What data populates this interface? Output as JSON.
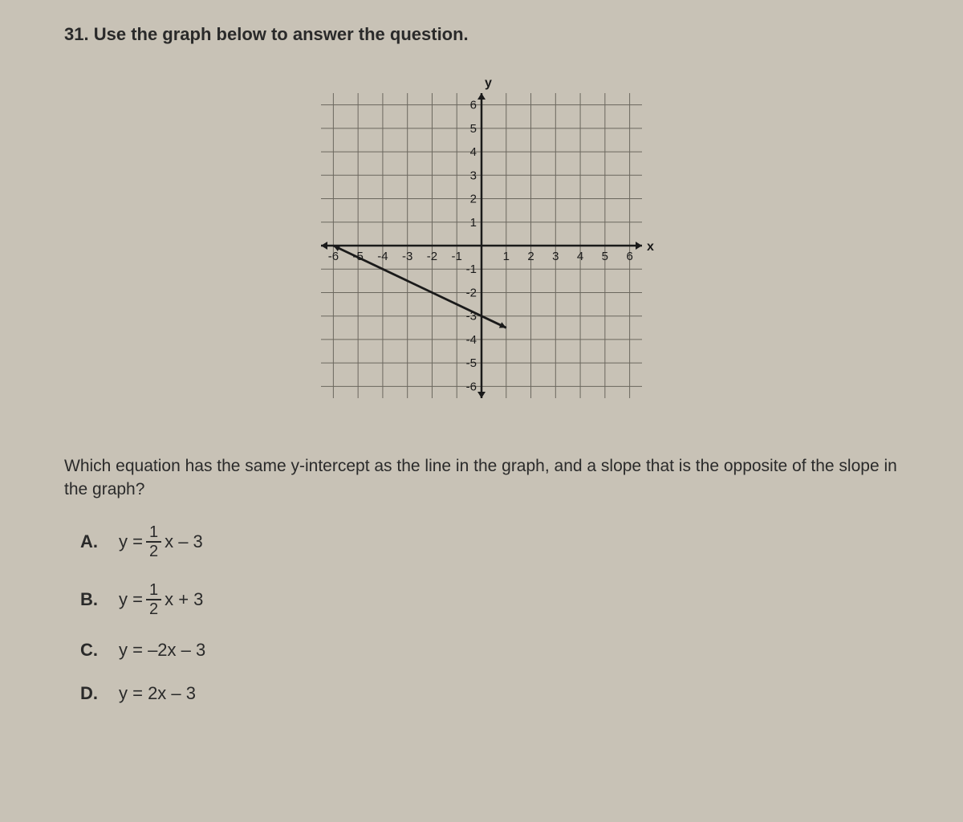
{
  "question_number": "31.",
  "question_header": "Use the graph below to answer the question.",
  "question_text": "Which equation has the same y-intercept as the line in the graph, and a slope that is the opposite of the slope in the graph?",
  "graph": {
    "type": "line",
    "x_label": "x",
    "y_label": "y",
    "xlim": [
      -6.5,
      6.5
    ],
    "ylim": [
      -6.5,
      6.5
    ],
    "xtick_labels_neg": [
      "-6",
      "-5",
      "-4",
      "-3",
      "-2",
      "-1"
    ],
    "xtick_labels_pos": [
      "1",
      "2",
      "3",
      "4",
      "5",
      "6"
    ],
    "ytick_labels_neg": [
      "-1",
      "-2",
      "-3",
      "-4",
      "-5",
      "-6"
    ],
    "ytick_labels_pos": [
      "1",
      "2",
      "3",
      "4",
      "5",
      "6"
    ],
    "line_points": [
      [
        -6,
        0
      ],
      [
        1,
        -3.5
      ]
    ],
    "line_slope": -0.5,
    "line_yintercept": -3,
    "grid_color": "#6b675e",
    "axis_color": "#1a1a1a",
    "line_color": "#1a1a1a",
    "label_fontsize": 16,
    "tick_fontsize": 15,
    "background": "#c8c2b6",
    "grid_step": 1,
    "arrow_size": 8
  },
  "choices": {
    "A": {
      "letter": "A.",
      "prefix": "y = ",
      "frac_num": "1",
      "frac_den": "2",
      "suffix": "x – 3"
    },
    "B": {
      "letter": "B.",
      "prefix": "y = ",
      "frac_num": "1",
      "frac_den": "2",
      "suffix": "x + 3"
    },
    "C": {
      "letter": "C.",
      "text": "y = –2x – 3"
    },
    "D": {
      "letter": "D.",
      "text": "y = 2x – 3"
    }
  }
}
